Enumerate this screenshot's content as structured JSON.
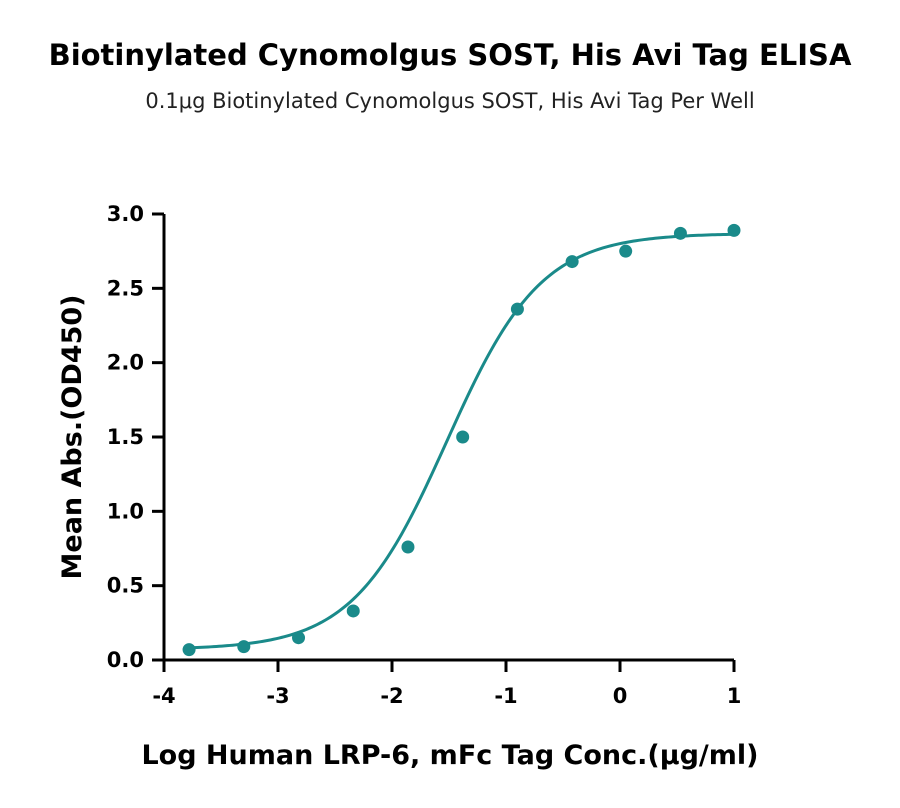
{
  "chart_data": {
    "type": "scatter",
    "title": "Biotinylated Cynomolgus SOST, His Avi Tag ELISA",
    "subtitle": "0.1μg Biotinylated Cynomolgus SOST, His Avi Tag Per Well",
    "xlabel": "Log Human LRP-6, mFc Tag Conc.(μg/ml)",
    "ylabel": "Mean Abs.(OD450)",
    "xlim": [
      -4,
      1
    ],
    "ylim": [
      0,
      3
    ],
    "xticks": [
      "-4",
      "-3",
      "-2",
      "-1",
      "0",
      "1"
    ],
    "yticks": [
      "0.0",
      "0.5",
      "1.0",
      "1.5",
      "2.0",
      "2.5",
      "3.0"
    ],
    "color": "#1a8a8a",
    "series": [
      {
        "points": [
          {
            "x": -3.78,
            "y": 0.07
          },
          {
            "x": -3.3,
            "y": 0.09
          },
          {
            "x": -2.82,
            "y": 0.15
          },
          {
            "x": -2.34,
            "y": 0.33
          },
          {
            "x": -1.86,
            "y": 0.76
          },
          {
            "x": -1.38,
            "y": 1.5
          },
          {
            "x": -0.9,
            "y": 2.36
          },
          {
            "x": -0.42,
            "y": 2.68
          },
          {
            "x": 0.05,
            "y": 2.75
          },
          {
            "x": 0.53,
            "y": 2.87
          },
          {
            "x": 1.0,
            "y": 2.89
          }
        ],
        "fit": {
          "model": "4PL",
          "bottom": 0.07,
          "top": 2.87,
          "logEC50": -1.52,
          "hill": 1.05
        }
      }
    ]
  }
}
